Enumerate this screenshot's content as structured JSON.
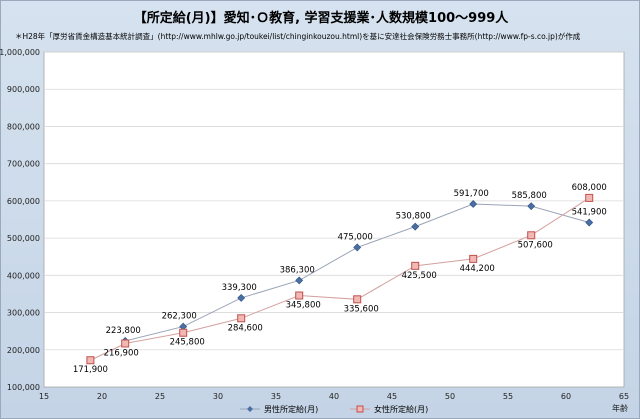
{
  "chart_data": {
    "type": "line",
    "title": "【所定給(月)】愛知･Ｏ教育, 学習支援業･人数規模100～999人",
    "subtitle": "＊H28年「厚労省賃金構造基本統計調査」(http://www.mhlw.go.jp/toukei/list/chinginkouzou.html)を基に安達社会保険労務士事務所(http://www.fp-s.co.jp)が作成",
    "xlabel": "年齢",
    "ylabel": "",
    "xlim": [
      15,
      65
    ],
    "ylim": [
      100000,
      1000000
    ],
    "xticks": [
      15,
      20,
      25,
      30,
      35,
      40,
      45,
      50,
      55,
      60,
      65
    ],
    "yticks": [
      100000,
      200000,
      300000,
      400000,
      500000,
      600000,
      700000,
      800000,
      900000,
      1000000
    ],
    "ytick_labels": [
      "100,000",
      "200,000",
      "300,000",
      "400,000",
      "500,000",
      "600,000",
      "700,000",
      "800,000",
      "900,000",
      "1,000,000"
    ],
    "grid": true,
    "legend_position": "bottom",
    "series": [
      {
        "name": "男性所定給(月)",
        "color": "#4a6fa5",
        "marker": "diamond",
        "points": [
          {
            "x": 22,
            "y": 223800,
            "label": "223,800"
          },
          {
            "x": 27,
            "y": 262300,
            "label": "262,300"
          },
          {
            "x": 32,
            "y": 339300,
            "label": "339,300"
          },
          {
            "x": 37,
            "y": 386300,
            "label": "386,300"
          },
          {
            "x": 42,
            "y": 475000,
            "label": "475,000"
          },
          {
            "x": 47,
            "y": 530800,
            "label": "530,800"
          },
          {
            "x": 52,
            "y": 591700,
            "label": "591,700"
          },
          {
            "x": 57,
            "y": 585800,
            "label": "585,800"
          },
          {
            "x": 62,
            "y": 541900,
            "label": "541,900"
          }
        ]
      },
      {
        "name": "女性所定給(月)",
        "color": "#c0504d",
        "marker": "square",
        "points": [
          {
            "x": 19,
            "y": 171900,
            "label": "171,900"
          },
          {
            "x": 22,
            "y": 216900,
            "label": "216,900"
          },
          {
            "x": 27,
            "y": 245800,
            "label": "245,800"
          },
          {
            "x": 32,
            "y": 284600,
            "label": "284,600"
          },
          {
            "x": 37,
            "y": 345800,
            "label": "345,800"
          },
          {
            "x": 42,
            "y": 335600,
            "label": "335,600"
          },
          {
            "x": 47,
            "y": 425500,
            "label": "425,500"
          },
          {
            "x": 52,
            "y": 444200,
            "label": "444,200"
          },
          {
            "x": 57,
            "y": 507600,
            "label": "507,600"
          },
          {
            "x": 62,
            "y": 608000,
            "label": "608,000"
          }
        ]
      }
    ]
  }
}
